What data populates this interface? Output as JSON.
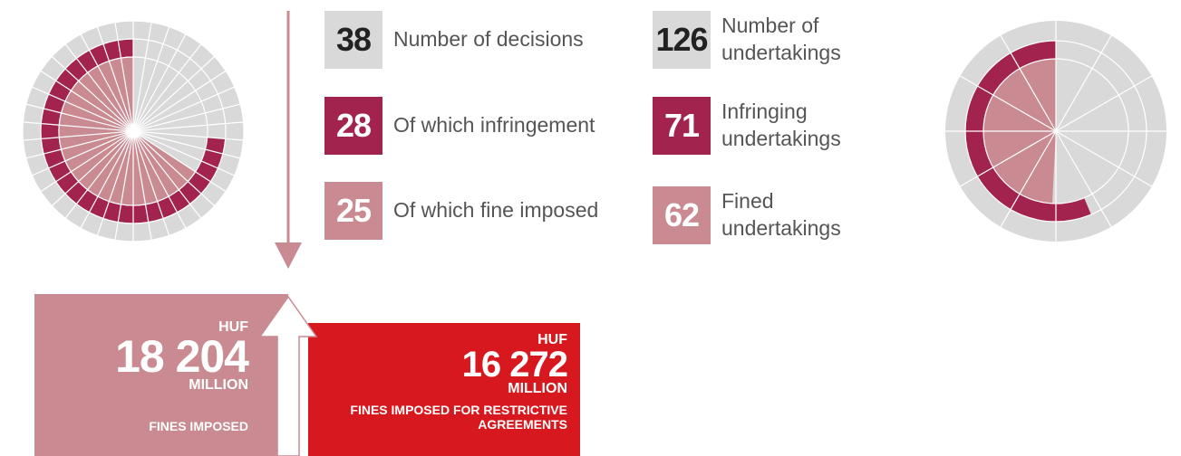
{
  "stats": [
    {
      "value": 38,
      "label": "Number of decisions"
    },
    {
      "value": 28,
      "label": "Of which infringement"
    },
    {
      "value": 25,
      "label": "Of which fine imposed"
    },
    {
      "value": 126,
      "label": "Number of undertakings"
    },
    {
      "value": 71,
      "label": "Infringing undertakings"
    },
    {
      "value": 62,
      "label": "Fined undertakings"
    }
  ],
  "fines": [
    {
      "currency": "HUF",
      "amount": "18 204",
      "unit": "MILLION",
      "caption": "FINES IMPOSED"
    },
    {
      "currency": "HUF",
      "amount": "16 272",
      "unit": "MILLION",
      "caption": "FINES IMPOSED FOR RESTRICTIVE AGREEMENTS"
    }
  ]
}
